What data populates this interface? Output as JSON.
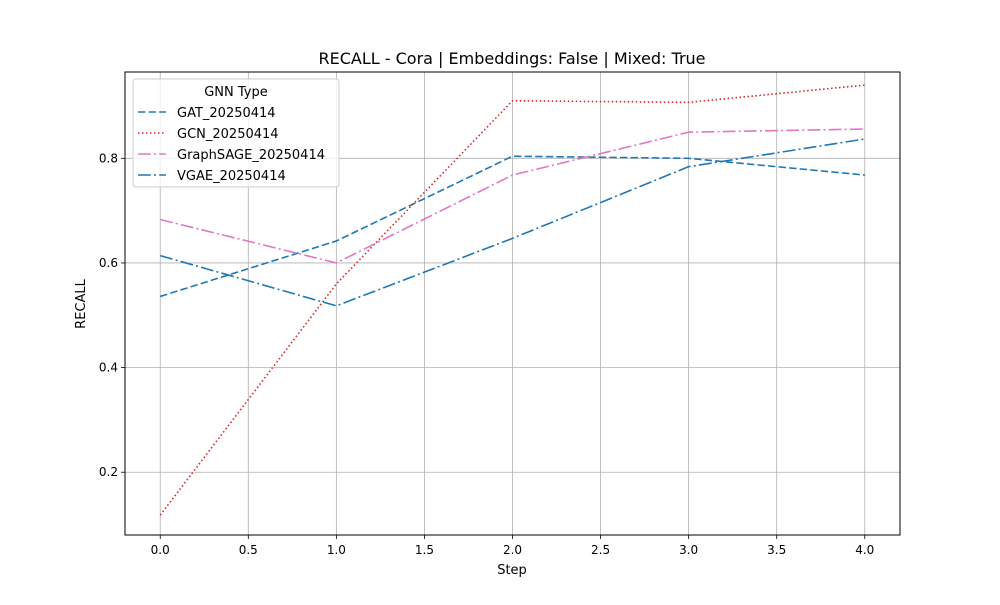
{
  "chart_data": {
    "type": "line",
    "title": "RECALL - Cora | Embeddings: False | Mixed: True",
    "xlabel": "Step",
    "ylabel": "RECALL",
    "x": [
      0,
      1,
      2,
      3,
      4
    ],
    "xlim": [
      -0.2,
      4.2
    ],
    "ylim": [
      0.08,
      0.965
    ],
    "xticks": [
      0.0,
      0.5,
      1.0,
      1.5,
      2.0,
      2.5,
      3.0,
      3.5,
      4.0
    ],
    "xtick_labels": [
      "0.0",
      "0.5",
      "1.0",
      "1.5",
      "2.0",
      "2.5",
      "3.0",
      "3.5",
      "4.0"
    ],
    "yticks": [
      0.2,
      0.4,
      0.6,
      0.8
    ],
    "ytick_labels": [
      "0.2",
      "0.4",
      "0.6",
      "0.8"
    ],
    "grid": true,
    "legend": {
      "title": "GNN Type",
      "placement": "top-left"
    },
    "series": [
      {
        "name": "GAT_20250414",
        "values": [
          0.536,
          0.642,
          0.804,
          0.8,
          0.768
        ],
        "color": "#1f77b4",
        "style": "dashed"
      },
      {
        "name": "GCN_20250414",
        "values": [
          0.118,
          0.56,
          0.91,
          0.907,
          0.94
        ],
        "color": "#d62728",
        "style": "dotted"
      },
      {
        "name": "GraphSAGE_20250414",
        "values": [
          0.683,
          0.6,
          0.768,
          0.85,
          0.856
        ],
        "color": "#e377c2",
        "style": "dashdot"
      },
      {
        "name": "VGAE_20250414",
        "values": [
          0.614,
          0.518,
          0.647,
          0.784,
          0.837
        ],
        "color": "#1f77b4",
        "style": "dashdot"
      }
    ]
  }
}
